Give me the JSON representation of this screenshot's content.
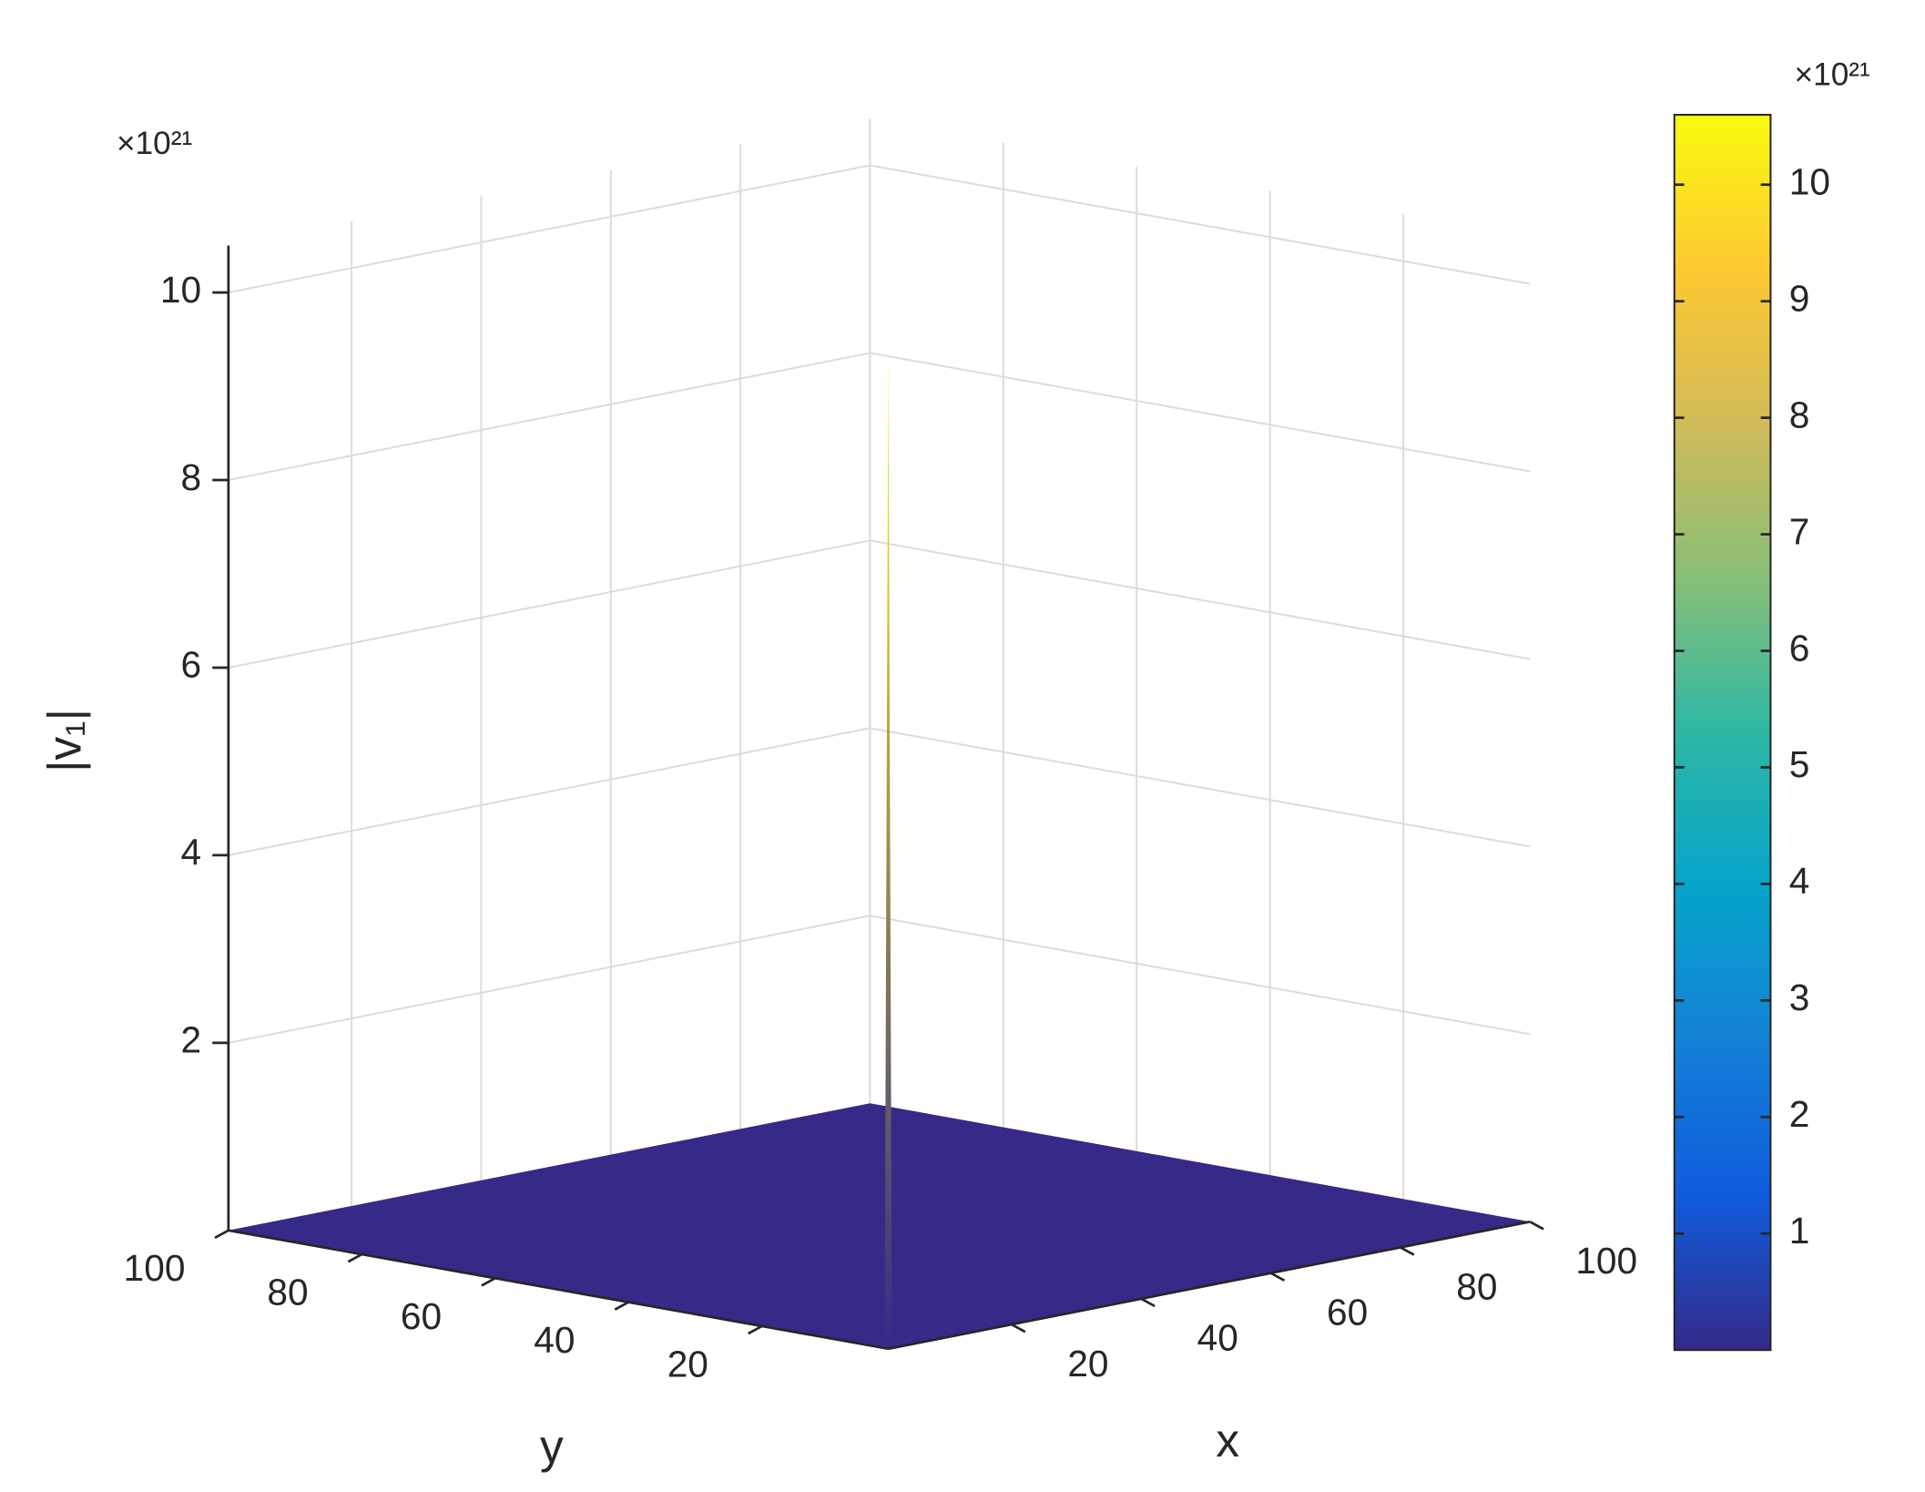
{
  "chart_data": {
    "type": "surface3d",
    "xlabel": "x",
    "ylabel": "y",
    "zlabel": "|v₁|",
    "z_exponent_label": "×10²¹",
    "colorbar_exponent_label": "×10²¹",
    "xlim": [
      1,
      100
    ],
    "ylim": [
      1,
      100
    ],
    "zlim": [
      0,
      10.5
    ],
    "xticks": [
      20,
      40,
      60,
      80,
      100
    ],
    "yticks": [
      20,
      40,
      60,
      80,
      100
    ],
    "zticks": [
      2,
      4,
      6,
      8,
      10
    ],
    "surface": {
      "base": 0,
      "peak": {
        "x": 2,
        "y": 2,
        "z": 10.6
      }
    },
    "clim": [
      0,
      10.6
    ],
    "colorbar_ticks": [
      1,
      2,
      3,
      4,
      5,
      6,
      7,
      8,
      9,
      10
    ],
    "colormap_colors": [
      "#352a87",
      "#0f5cdd",
      "#1481d6",
      "#06a4ca",
      "#2eb7a4",
      "#87bf77",
      "#d1bb59",
      "#fec832",
      "#f9fb0e"
    ],
    "grid": true
  }
}
